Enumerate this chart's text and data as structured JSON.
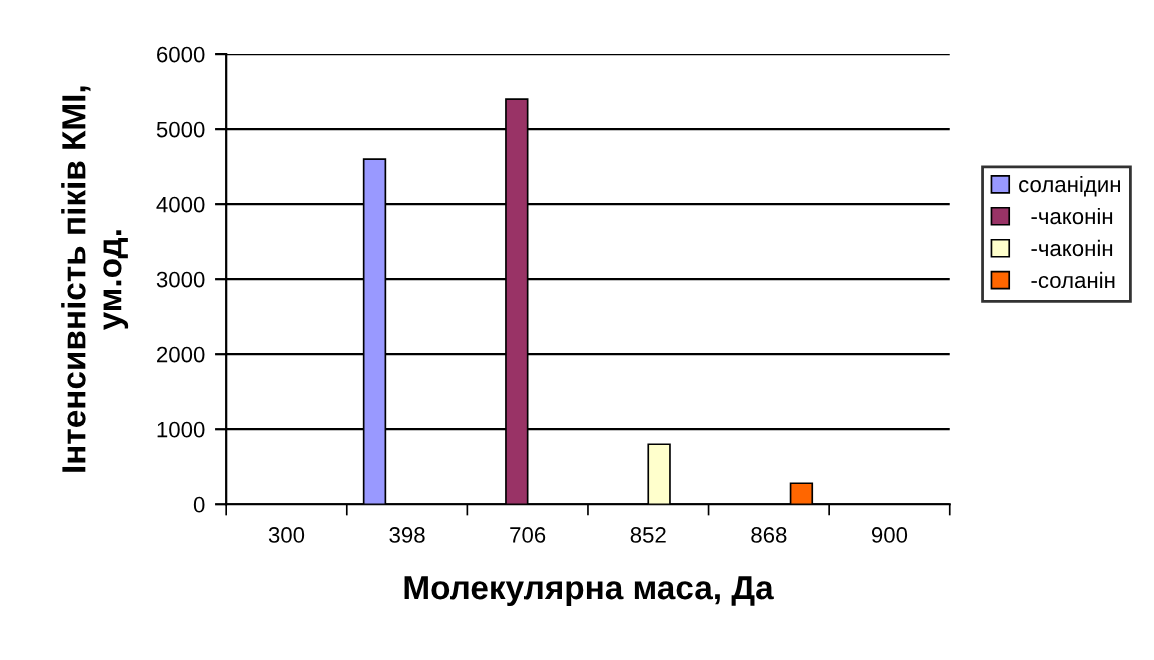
{
  "chart_data": {
    "type": "bar",
    "xlabel": "Молекулярна маса, Да",
    "ylabel": "Інтенсивність піків КМІ,\nум.од.",
    "categories": [
      "300",
      "398",
      "706",
      "852",
      "868",
      "900"
    ],
    "series": [
      {
        "name": "соланідин",
        "color": "#9999ff",
        "values": [
          null,
          4600,
          null,
          null,
          null,
          null
        ]
      },
      {
        "name": "  -чаконін",
        "color": "#993366",
        "values": [
          null,
          null,
          5400,
          null,
          null,
          null
        ]
      },
      {
        "name": "  -чаконін",
        "color": "#ffffcc",
        "values": [
          null,
          null,
          null,
          800,
          null,
          null
        ]
      },
      {
        "name": "  -соланін",
        "color": "#ff6600",
        "values": [
          null,
          null,
          null,
          null,
          280,
          null
        ]
      }
    ],
    "ylim": [
      0,
      6000
    ],
    "yticks": [
      0,
      1000,
      2000,
      3000,
      4000,
      5000,
      6000
    ],
    "grid": "y",
    "legend": "right"
  }
}
